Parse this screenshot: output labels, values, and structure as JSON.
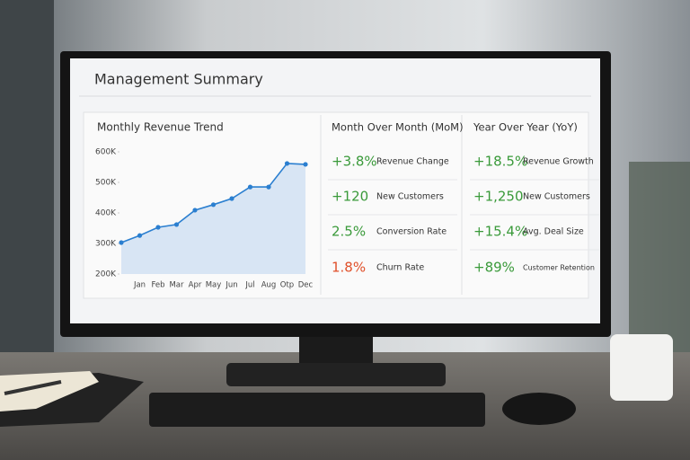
{
  "title": "Management Summary",
  "chart_data": {
    "type": "line",
    "title": "Monthly Revenue Trend",
    "categories": [
      null,
      "Jan",
      "Feb",
      "Mar",
      "Apr",
      "May",
      "Jun",
      "Jul",
      "Aug",
      "Otp",
      "Dec"
    ],
    "values": [
      303000,
      326000,
      353000,
      362000,
      409000,
      427000,
      447000,
      485000,
      485000,
      562000,
      559000
    ],
    "color": "#2b7fd0",
    "area_color": "#cfe0f3",
    "ylim": [
      200000,
      600000
    ],
    "yticks": [
      {
        "value": 200000,
        "label": "200K"
      },
      {
        "value": 300000,
        "label": "300K"
      },
      {
        "value": 400000,
        "label": "400K"
      },
      {
        "value": 500000,
        "label": "500K"
      },
      {
        "value": 600000,
        "label": "600K"
      }
    ]
  },
  "panels": [
    {
      "title": "Month Over Month (MoM)",
      "items": [
        {
          "value": "+3.8%",
          "label": "Revenue Change",
          "color": "#3a9a3a"
        },
        {
          "value": "+120",
          "label": "New Customers",
          "color": "#3a9a3a"
        },
        {
          "value": "2.5%",
          "label": "Conversion Rate",
          "color": "#3a9a3a"
        },
        {
          "value": "1.8%",
          "label": "Churn Rate",
          "color": "#e0502a"
        }
      ]
    },
    {
      "title": "Year Over Year (YoY)",
      "items": [
        {
          "value": "+18.5%",
          "label": "Revenue Growth",
          "color": "#3a9a3a"
        },
        {
          "value": "+1,250",
          "label": "New Customers",
          "color": "#3a9a3a"
        },
        {
          "value": "+15.4%",
          "label": "Avg. Deal Size",
          "color": "#3a9a3a"
        },
        {
          "value": "+89%",
          "label": "Customer Retention",
          "color": "#3a9a3a"
        }
      ]
    }
  ]
}
